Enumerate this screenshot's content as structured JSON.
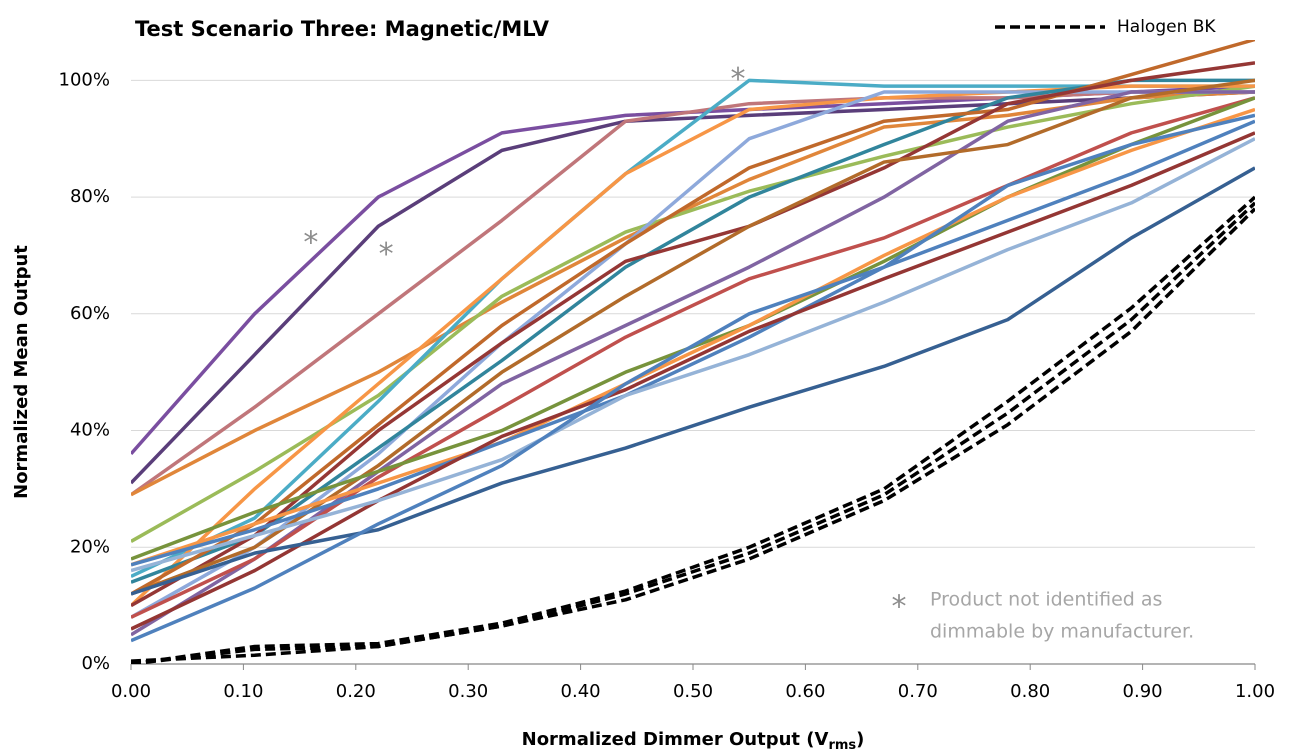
{
  "chart_data": {
    "type": "line",
    "title": "Test Scenario Three: Magnetic/MLV",
    "x_label": [
      "Normalized Dimmer Output (V",
      "rms",
      ")"
    ],
    "y_label": "Normalized Mean Output",
    "x": [
      0,
      0.11,
      0.22,
      0.33,
      0.44,
      0.55,
      0.67,
      0.78,
      0.89,
      1.0
    ],
    "xlim": [
      0,
      1
    ],
    "xticks": [
      {
        "value": 0,
        "label": "0.00"
      },
      {
        "value": 0.1,
        "label": "0.10"
      },
      {
        "value": 0.2,
        "label": "0.20"
      },
      {
        "value": 0.3,
        "label": "0.30"
      },
      {
        "value": 0.4,
        "label": "0.40"
      },
      {
        "value": 0.5,
        "label": "0.50"
      },
      {
        "value": 0.6,
        "label": "0.60"
      },
      {
        "value": 0.7,
        "label": "0.70"
      },
      {
        "value": 0.8,
        "label": "0.80"
      },
      {
        "value": 0.9,
        "label": "0.90"
      },
      {
        "value": 1.0,
        "label": "1.00"
      }
    ],
    "ylim": [
      0,
      104
    ],
    "yticks": [
      {
        "value": 0,
        "label": "0%"
      },
      {
        "value": 20,
        "label": "20%"
      },
      {
        "value": 40,
        "label": "40%"
      },
      {
        "value": 60,
        "label": "60%"
      },
      {
        "value": 80,
        "label": "80%"
      },
      {
        "value": 100,
        "label": "100%"
      }
    ],
    "grid": true,
    "legend": "top-right",
    "series": [
      {
        "color": "#7a4ea0",
        "values": [
          36,
          60,
          80,
          91,
          94,
          95,
          96,
          97,
          98,
          99
        ]
      },
      {
        "color": "#5a3e7a",
        "values": [
          31,
          53,
          75,
          88,
          93,
          94,
          95,
          96,
          97,
          98
        ]
      },
      {
        "color": "#c0767a",
        "values": [
          29,
          44,
          60,
          76,
          93,
          96,
          97,
          97,
          98,
          98
        ]
      },
      {
        "color": "#e0863a",
        "values": [
          29,
          40,
          50,
          62,
          73,
          83,
          92,
          94,
          97,
          98
        ]
      },
      {
        "color": "#9bbb59",
        "values": [
          21,
          33,
          46,
          63,
          74,
          81,
          87,
          92,
          96,
          99
        ]
      },
      {
        "color": "#4bacc6",
        "values": [
          15,
          25,
          45,
          66,
          84,
          100,
          99,
          99,
          99,
          99
        ]
      },
      {
        "color": "#f79646",
        "values": [
          10,
          30,
          48,
          66,
          84,
          95,
          97,
          98,
          99,
          99
        ]
      },
      {
        "color": "#8ea9db",
        "values": [
          8,
          20,
          36,
          55,
          72,
          90,
          98,
          98,
          98,
          98
        ]
      },
      {
        "color": "#31859c",
        "values": [
          14,
          22,
          37,
          52,
          68,
          80,
          89,
          97,
          100,
          100
        ]
      },
      {
        "color": "#c0692b",
        "values": [
          12,
          24,
          41,
          58,
          72,
          85,
          93,
          95,
          101,
          107
        ]
      },
      {
        "color": "#953735",
        "values": [
          10,
          22,
          40,
          55,
          69,
          75,
          85,
          96,
          100,
          103
        ]
      },
      {
        "color": "#8064a2",
        "values": [
          5,
          18,
          33,
          48,
          58,
          68,
          80,
          93,
          98,
          98
        ]
      },
      {
        "color": "#b26b2a",
        "values": [
          12,
          20,
          34,
          50,
          63,
          75,
          86,
          89,
          97,
          100
        ]
      },
      {
        "color": "#c0504d",
        "values": [
          8,
          18,
          32,
          44,
          56,
          66,
          73,
          82,
          91,
          97
        ]
      },
      {
        "color": "#77933c",
        "values": [
          18,
          26,
          33,
          40,
          50,
          58,
          69,
          80,
          89,
          97
        ]
      },
      {
        "color": "#f79646",
        "values": [
          17,
          24,
          31,
          38,
          48,
          58,
          70,
          80,
          88,
          95
        ]
      },
      {
        "color": "#4f81bd",
        "values": [
          17,
          23,
          30,
          38,
          46,
          56,
          68,
          82,
          89,
          94
        ]
      },
      {
        "color": "#943634",
        "values": [
          6,
          16,
          28,
          39,
          47,
          57,
          66,
          74,
          82,
          91
        ]
      },
      {
        "color": "#95b3d7",
        "values": [
          16,
          22,
          28,
          35,
          46,
          53,
          62,
          71,
          79,
          90
        ]
      },
      {
        "color": "#366092",
        "values": [
          12,
          19,
          23,
          31,
          37,
          44,
          51,
          59,
          73,
          85
        ]
      },
      {
        "color": "#4f81bd",
        "values": [
          4,
          13,
          24,
          34,
          48,
          60,
          68,
          76,
          84,
          93
        ]
      },
      {
        "name": "Halogen BK",
        "color": "#000000",
        "dash": true,
        "values": [
          0,
          2.5,
          3,
          6.5,
          12,
          19,
          29,
          43,
          59,
          79
        ]
      },
      {
        "color": "#000000",
        "dash": true,
        "values": [
          0.5,
          1.5,
          3,
          6.5,
          11,
          18,
          28,
          41,
          57,
          78
        ]
      },
      {
        "color": "#000000",
        "dash": true,
        "values": [
          0,
          3,
          3.5,
          7,
          12.5,
          20,
          30,
          45,
          61,
          80
        ]
      }
    ],
    "annotations": [
      {
        "text": "*",
        "x": 0.16,
        "y": 73
      },
      {
        "text": "*",
        "x": 0.227,
        "y": 71
      },
      {
        "text": "*",
        "x": 0.54,
        "y": 101
      }
    ],
    "note": {
      "marker": "*",
      "lines": [
        "Product not identified as",
        "dimmable by manufacturer."
      ]
    }
  }
}
